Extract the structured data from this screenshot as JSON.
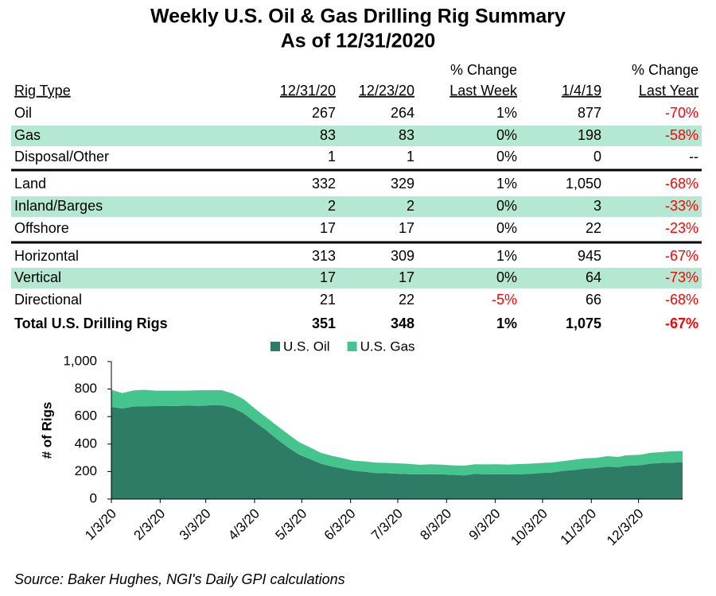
{
  "header": {
    "title": [
      "Weekly U.S. Oil & Gas Drilling Rig Summary",
      "As of 12/31/2020"
    ]
  },
  "table": {
    "columns": [
      "Rig Type",
      "12/31/20",
      "12/23/20",
      [
        "% Change",
        "Last Week"
      ],
      "1/4/19",
      [
        "% Change",
        "Last Year"
      ]
    ],
    "rows": [
      [
        "Oil",
        "267",
        "264",
        "1%",
        "877",
        "-70%"
      ],
      [
        "Gas",
        "83",
        "83",
        "0%",
        "198",
        "-58%"
      ],
      [
        "Disposal/Other",
        "1",
        "1",
        "0%",
        "0",
        "--"
      ],
      [
        "Land",
        "332",
        "329",
        "1%",
        "1,050",
        "-68%"
      ],
      [
        "Inland/Barges",
        "2",
        "2",
        "0%",
        "3",
        "-33%"
      ],
      [
        "Offshore",
        "17",
        "17",
        "0%",
        "22",
        "-23%"
      ],
      [
        "Horizontal",
        "313",
        "309",
        "1%",
        "945",
        "-67%"
      ],
      [
        "Vertical",
        "17",
        "17",
        "0%",
        "64",
        "-73%"
      ],
      [
        "Directional",
        "21",
        "22",
        "-5%",
        "66",
        "-68%"
      ],
      [
        "Total U.S. Drilling Rigs",
        "351",
        "348",
        "1%",
        "1,075",
        "-67%"
      ]
    ]
  },
  "chart_data": {
    "type": "stacked-area",
    "ylabel": "# of Rigs",
    "x": [
      "1/3/20",
      "1/10/20",
      "1/17/20",
      "1/24/20",
      "1/31/20",
      "2/7/20",
      "2/14/20",
      "2/21/20",
      "2/28/20",
      "3/6/20",
      "3/13/20",
      "3/20/20",
      "3/27/20",
      "4/3/20",
      "4/10/20",
      "4/17/20",
      "4/24/20",
      "5/1/20",
      "5/8/20",
      "5/15/20",
      "5/22/20",
      "5/29/20",
      "6/5/20",
      "6/12/20",
      "6/19/20",
      "6/26/20",
      "7/2/20",
      "7/10/20",
      "7/17/20",
      "7/24/20",
      "7/31/20",
      "8/7/20",
      "8/14/20",
      "8/21/20",
      "8/28/20",
      "9/4/20",
      "9/11/20",
      "9/18/20",
      "9/25/20",
      "10/2/20",
      "10/9/20",
      "10/16/20",
      "10/23/20",
      "10/30/20",
      "11/6/20",
      "11/13/20",
      "11/20/20",
      "11/25/20",
      "12/4/20",
      "12/11/20",
      "12/18/20",
      "12/23/20",
      "12/31/20"
    ],
    "series": [
      {
        "name": "U.S. Oil",
        "color": "#2e7b66",
        "values": [
          670,
          659,
          673,
          675,
          676,
          676,
          678,
          679,
          678,
          682,
          683,
          664,
          624,
          562,
          504,
          438,
          378,
          325,
          292,
          258,
          237,
          222,
          206,
          199,
          189,
          188,
          185,
          181,
          180,
          181,
          180,
          176,
          172,
          183,
          180,
          181,
          180,
          179,
          183,
          189,
          193,
          205,
          211,
          221,
          226,
          236,
          231,
          241,
          246,
          258,
          263,
          264,
          267
        ]
      },
      {
        "name": "U.S. Gas",
        "color": "#45c48e",
        "values": [
          125,
          112,
          117,
          120,
          112,
          112,
          110,
          110,
          113,
          110,
          109,
          104,
          103,
          98,
          94,
          98,
          97,
          91,
          85,
          79,
          78,
          76,
          73,
          75,
          76,
          75,
          76,
          75,
          69,
          72,
          70,
          69,
          71,
          70,
          72,
          72,
          71,
          75,
          74,
          73,
          73,
          71,
          75,
          75,
          73,
          76,
          75,
          77,
          76,
          79,
          79,
          83,
          83
        ]
      }
    ],
    "xlim": [
      "1/3/20",
      "12/31/20"
    ],
    "xticks": [
      "1/3/20",
      "2/3/20",
      "3/3/20",
      "4/3/20",
      "5/3/20",
      "6/3/20",
      "7/3/20",
      "8/3/20",
      "9/3/20",
      "10/3/20",
      "11/3/20",
      "12/3/20"
    ],
    "ylim": [
      0,
      1000
    ],
    "yticks": [
      0,
      200,
      400,
      600,
      800,
      {
        "value": 1000,
        "label": "1,000"
      }
    ],
    "legend": "top"
  },
  "source": "Source: Baker Hughes, NGI's Daily GPI calculations"
}
